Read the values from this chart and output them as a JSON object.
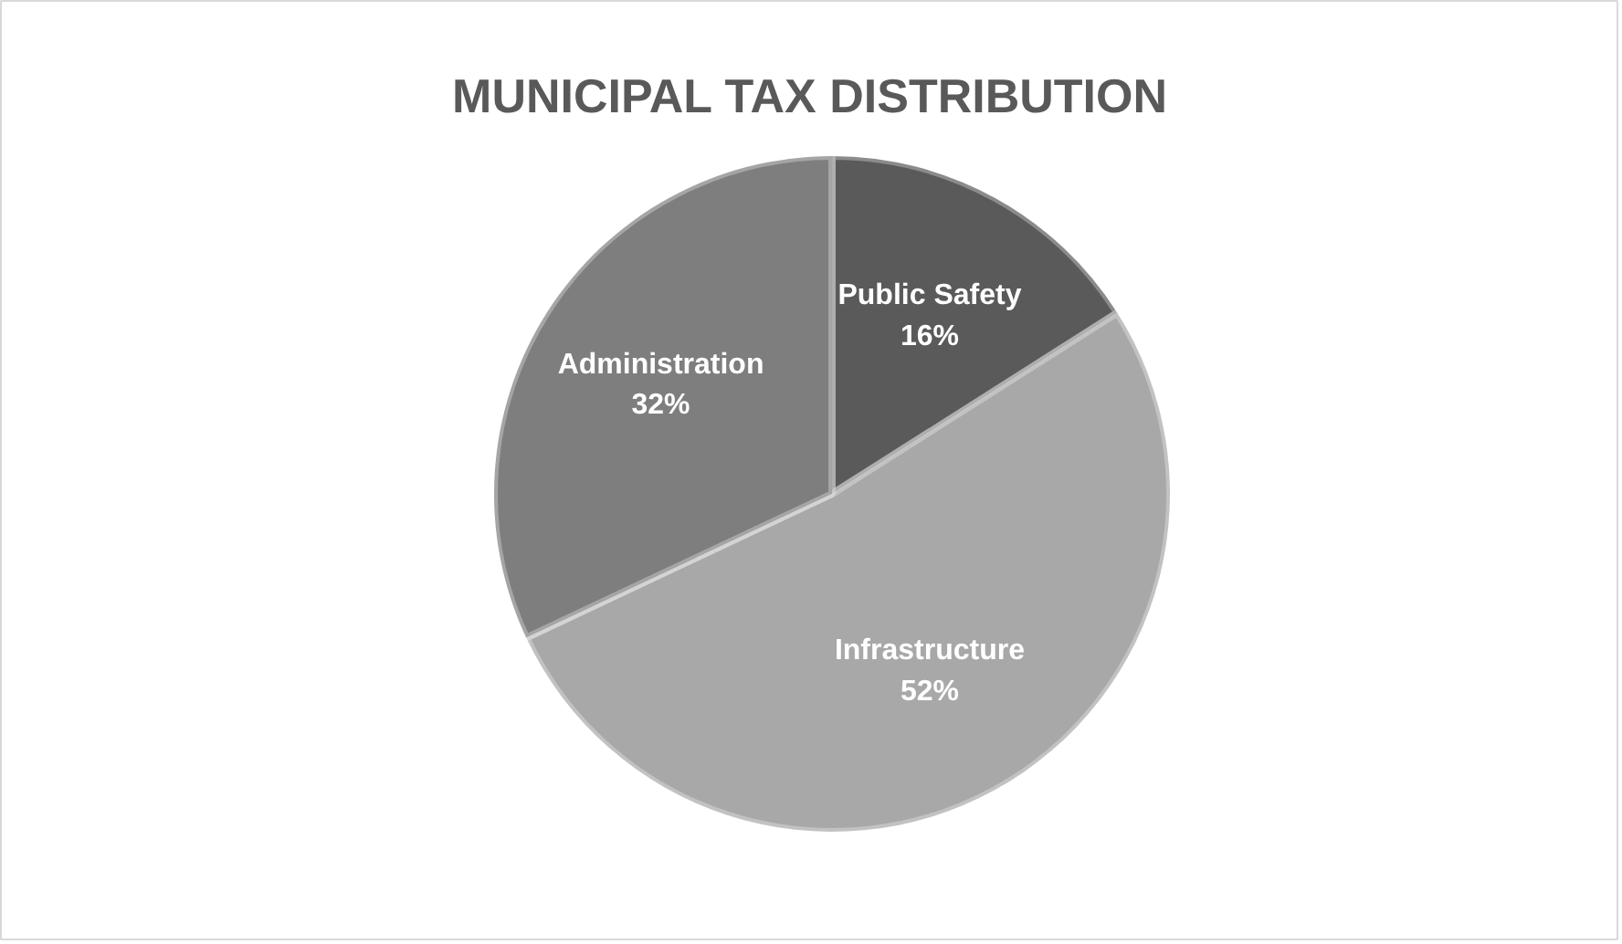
{
  "chart_data": {
    "type": "pie",
    "title": "MUNICIPAL TAX DISTRIBUTION",
    "categories": [
      "Public Safety",
      "Infrastructure",
      "Administration"
    ],
    "values": [
      16,
      52,
      32
    ],
    "value_labels": [
      "16%",
      "52%",
      "32%"
    ],
    "colors": [
      "#5a5a5a",
      "#a8a8a8",
      "#7e7e7e"
    ]
  }
}
